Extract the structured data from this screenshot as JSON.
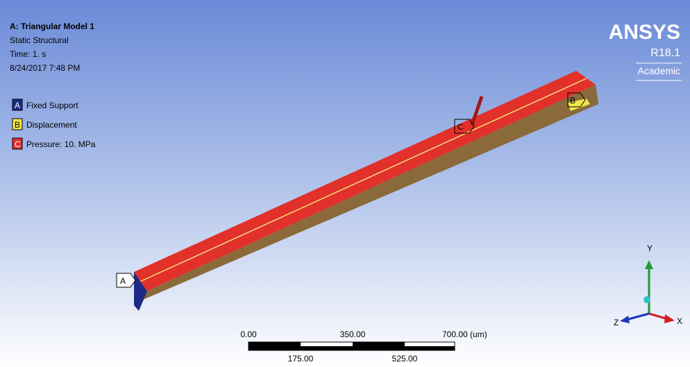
{
  "header": {
    "title": "A: Triangular Model 1",
    "lines": [
      "Static Structural",
      "Time: 1. s",
      "8/24/2017 7:48 PM"
    ]
  },
  "legend": [
    {
      "key": "A",
      "label": "Fixed Support"
    },
    {
      "key": "B",
      "label": "Displacement"
    },
    {
      "key": "C",
      "label": "Pressure: 10. MPa"
    }
  ],
  "logo": {
    "name": "ANSYS",
    "version": "R18.1",
    "edition": "Academic"
  },
  "callouts": [
    "A",
    "B",
    "C"
  ],
  "scale_bar": {
    "top_labels": [
      "0.00",
      "350.00",
      "700.00 (um)"
    ],
    "bottom_labels": [
      "175.00",
      "525.00"
    ]
  },
  "triad": {
    "x": "X",
    "y": "Y",
    "z": "Z"
  }
}
